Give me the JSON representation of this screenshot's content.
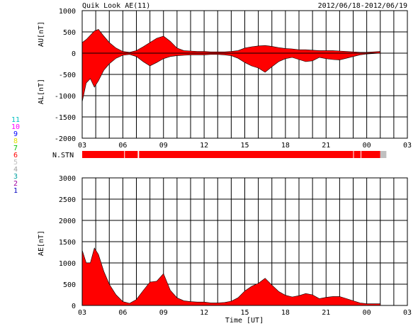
{
  "header": {
    "title": "Quik Look AE(11)",
    "date_range": "2012/06/18-2012/06/19"
  },
  "colors": {
    "fill": "#ff0000",
    "axis": "#000000",
    "nstn_missing": "#c0c0c0"
  },
  "station_legend": [
    {
      "label": "11",
      "color": "#00c0c0"
    },
    {
      "label": "10",
      "color": "#ff00ff"
    },
    {
      "label": "9",
      "color": "#0000ff"
    },
    {
      "label": "8",
      "color": "#e0e000"
    },
    {
      "label": "7",
      "color": "#00c000"
    },
    {
      "label": "6",
      "color": "#ff0000"
    },
    {
      "label": "5",
      "color": "#c0c0c0"
    },
    {
      "label": "4",
      "color": "#a0a0a0"
    },
    {
      "label": "3",
      "color": "#00a0a0"
    },
    {
      "label": "2",
      "color": "#a000a0"
    },
    {
      "label": "1",
      "color": "#0000c0"
    }
  ],
  "nstn_label": "N.STN",
  "chart_data": [
    {
      "type": "area",
      "panel": "AU/AL",
      "ylabel_upper": "AU[nT]",
      "ylabel_lower": "AL[nT]",
      "ylim": [
        -2000,
        1000
      ],
      "y_ticks": [
        "1000",
        "500",
        "0",
        "-500",
        "-1000",
        "-1500",
        "-2000"
      ],
      "x_ticks": [
        "03",
        "06",
        "09",
        "12",
        "15",
        "18",
        "21",
        "00",
        "03"
      ],
      "x_range_hours": [
        3,
        27
      ],
      "grid": true,
      "series": [
        {
          "values_upper_note": "AU",
          "x": [
            3,
            3.3,
            3.6,
            3.9,
            4.2,
            4.6,
            5,
            5.5,
            6,
            6.5,
            7,
            7.5,
            8,
            8.5,
            9,
            9.5,
            10,
            10.5,
            11,
            11.5,
            12,
            12.5,
            13,
            13.5,
            14,
            14.5,
            15,
            15.5,
            16,
            16.5,
            17,
            17.5,
            18,
            18.5,
            19,
            19.5,
            20,
            20.5,
            21,
            21.5,
            22,
            22.5,
            23,
            23.5,
            24,
            24.5,
            25
          ],
          "au": [
            250,
            320,
            420,
            520,
            560,
            400,
            250,
            120,
            40,
            20,
            60,
            150,
            250,
            350,
            400,
            280,
            120,
            60,
            50,
            40,
            40,
            30,
            30,
            30,
            40,
            60,
            120,
            150,
            170,
            180,
            160,
            130,
            110,
            100,
            80,
            80,
            70,
            60,
            60,
            60,
            50,
            40,
            30,
            20,
            20,
            30,
            40
          ],
          "al": [
            -1150,
            -700,
            -600,
            -800,
            -650,
            -400,
            -250,
            -120,
            -50,
            -30,
            -80,
            -200,
            -300,
            -220,
            -130,
            -80,
            -60,
            -50,
            -40,
            -40,
            -40,
            -30,
            -30,
            -40,
            -60,
            -120,
            -220,
            -300,
            -350,
            -450,
            -320,
            -200,
            -130,
            -100,
            -150,
            -200,
            -180,
            -100,
            -130,
            -150,
            -160,
            -120,
            -80,
            -40,
            -20,
            -10,
            0
          ]
        }
      ]
    },
    {
      "type": "area",
      "panel": "AE",
      "ylabel": "AE[nT]",
      "xlabel": "Time [UT]",
      "ylim": [
        0,
        3000
      ],
      "y_ticks": [
        "3000",
        "2500",
        "2000",
        "1500",
        "1000",
        "500",
        "0"
      ],
      "x_ticks": [
        "03",
        "06",
        "09",
        "12",
        "15",
        "18",
        "21",
        "00",
        "03"
      ],
      "x_range_hours": [
        3,
        27
      ],
      "grid": true,
      "series": [
        {
          "x": [
            3,
            3.3,
            3.6,
            3.9,
            4.2,
            4.6,
            5,
            5.5,
            6,
            6.5,
            7,
            7.5,
            8,
            8.5,
            9,
            9.5,
            10,
            10.5,
            11,
            11.5,
            12,
            12.5,
            13,
            13.5,
            14,
            14.5,
            15,
            15.5,
            16,
            16.5,
            17,
            17.5,
            18,
            18.5,
            19,
            19.5,
            20,
            20.5,
            21,
            21.5,
            22,
            22.5,
            23,
            23.5,
            24,
            24.5,
            25
          ],
          "values": [
            1300,
            1000,
            1000,
            1350,
            1200,
            800,
            500,
            250,
            90,
            50,
            140,
            350,
            550,
            570,
            750,
            360,
            180,
            110,
            90,
            80,
            80,
            60,
            60,
            70,
            100,
            180,
            340,
            450,
            520,
            640,
            480,
            330,
            240,
            200,
            230,
            280,
            250,
            160,
            190,
            210,
            210,
            160,
            110,
            60,
            40,
            40,
            40
          ]
        }
      ]
    }
  ],
  "nstn": {
    "x_range_hours": [
      3,
      27
    ],
    "segments": [
      {
        "from": 3,
        "to": 6.1,
        "stations": 6
      },
      {
        "from": 6.15,
        "to": 7.1,
        "stations": 6
      },
      {
        "from": 7.2,
        "to": 23.0,
        "stations": 6
      },
      {
        "from": 23.05,
        "to": 23.55,
        "stations": 6
      },
      {
        "from": 23.6,
        "to": 25.0,
        "stations": 6
      },
      {
        "from": 25.0,
        "to": 25.45,
        "stations": 0
      }
    ]
  }
}
